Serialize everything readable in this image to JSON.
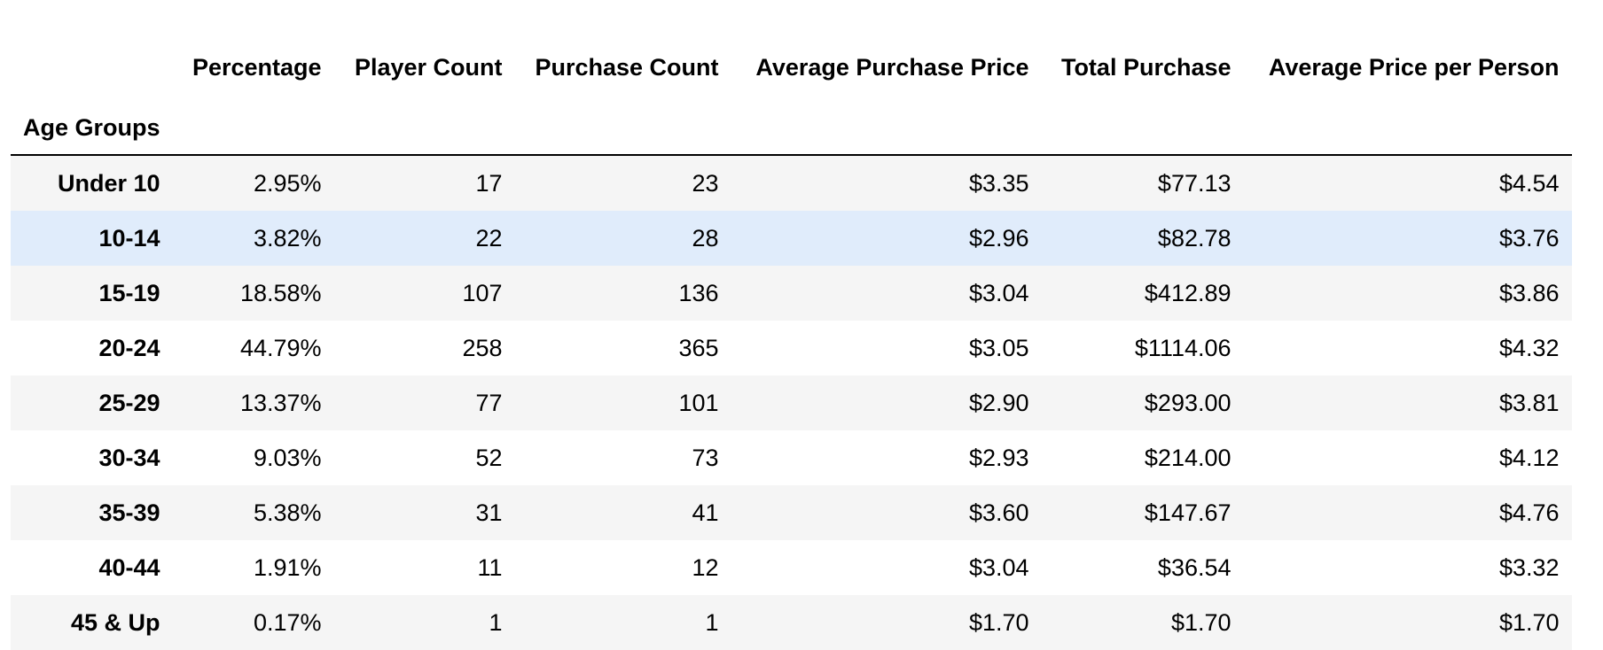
{
  "table": {
    "index_name": "Age Groups",
    "columns": [
      "Percentage",
      "Player Count",
      "Purchase Count",
      "Average Purchase Price",
      "Total Purchase",
      "Average Price per Person"
    ],
    "rows": [
      {
        "label": "Under 10",
        "cells": [
          "2.95%",
          "17",
          "23",
          "$3.35",
          "$77.13",
          "$4.54"
        ]
      },
      {
        "label": "10-14",
        "cells": [
          "3.82%",
          "22",
          "28",
          "$2.96",
          "$82.78",
          "$3.76"
        ],
        "highlighted": true
      },
      {
        "label": "15-19",
        "cells": [
          "18.58%",
          "107",
          "136",
          "$3.04",
          "$412.89",
          "$3.86"
        ]
      },
      {
        "label": "20-24",
        "cells": [
          "44.79%",
          "258",
          "365",
          "$3.05",
          "$1114.06",
          "$4.32"
        ]
      },
      {
        "label": "25-29",
        "cells": [
          "13.37%",
          "77",
          "101",
          "$2.90",
          "$293.00",
          "$3.81"
        ]
      },
      {
        "label": "30-34",
        "cells": [
          "9.03%",
          "52",
          "73",
          "$2.93",
          "$214.00",
          "$4.12"
        ]
      },
      {
        "label": "35-39",
        "cells": [
          "5.38%",
          "31",
          "41",
          "$3.60",
          "$147.67",
          "$4.76"
        ]
      },
      {
        "label": "40-44",
        "cells": [
          "1.91%",
          "11",
          "12",
          "$3.04",
          "$36.54",
          "$3.32"
        ]
      },
      {
        "label": "45 & Up",
        "cells": [
          "0.17%",
          "1",
          "1",
          "$1.70",
          "$1.70",
          "$1.70"
        ]
      }
    ]
  },
  "colors": {
    "stripe": "#f5f5f5",
    "hover_highlight": "#e0ecfb",
    "header_rule": "#000000"
  }
}
